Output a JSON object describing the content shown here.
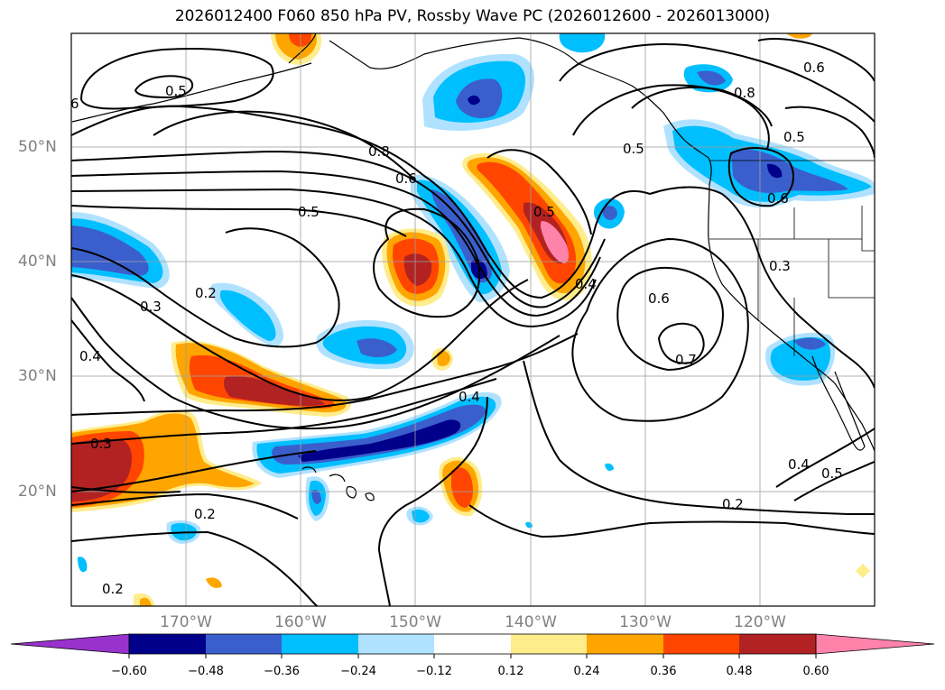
{
  "title": "2026012400 F060 850 hPa PV, Rossby Wave PC (2026012600 - 2026013000)",
  "map": {
    "projection": "equirectangular",
    "region": "North Pacific / west coast of North America",
    "lon_range": [
      -180,
      -110
    ],
    "lat_range": [
      10,
      60
    ],
    "gridlines": true,
    "lat_labels": [
      "50°N",
      "40°N",
      "30°N",
      "20°N"
    ],
    "lon_labels": [
      "170°W",
      "160°W",
      "150°W",
      "140°W",
      "130°W",
      "120°W"
    ]
  },
  "contours": {
    "variable": "850 hPa PV",
    "color": "#000000",
    "labels": [
      "0.5",
      "6",
      "0.8",
      "0.6",
      "0.5",
      "0.8",
      "0.5",
      "0.5",
      "0.6",
      "0.6",
      "0.5",
      "0.4",
      "0.6",
      "0.3",
      "0.2",
      "0.3",
      "0.4",
      "0.7",
      "0.4",
      "0.3",
      "0.2",
      "0.4",
      "0.5",
      "0.2",
      "0.2"
    ]
  },
  "shading": {
    "variable": "Rossby Wave PC",
    "features": [
      {
        "sign": "positive",
        "location": "Gulf of Alaska, 47N-39N 145W-137W",
        "max_level": "0.60"
      },
      {
        "sign": "positive",
        "location": "41N 152W",
        "max_level": "0.48"
      },
      {
        "sign": "positive",
        "location": "31N-27N 170W-155W",
        "max_level": "0.48"
      },
      {
        "sign": "positive",
        "location": "24N-20N 180W-170W",
        "max_level": "0.48"
      },
      {
        "sign": "negative",
        "location": "47N-38N 150W-145W",
        "max_level": "-0.60"
      },
      {
        "sign": "negative",
        "location": "26N-21N 160W-143W",
        "max_level": "-0.60"
      },
      {
        "sign": "negative",
        "location": "54N 144W",
        "max_level": "-0.48"
      },
      {
        "sign": "negative",
        "location": "42N-39N 180W-170W",
        "max_level": "-0.48"
      },
      {
        "sign": "negative",
        "location": "British Columbia / Washington coast",
        "max_level": "-0.48"
      }
    ]
  },
  "colorbar": {
    "ticks": [
      "−0.60",
      "−0.48",
      "−0.36",
      "−0.24",
      "−0.12",
      "0.12",
      "0.24",
      "0.36",
      "0.48",
      "0.60"
    ],
    "colors": [
      "#9932cc",
      "#00008b",
      "#3a5fcd",
      "#00bfff",
      "#b0e2ff",
      "#ffffff",
      "#ffec8b",
      "#ffa500",
      "#ff4500",
      "#b22222",
      "#ff82ab"
    ],
    "extend": "both"
  }
}
